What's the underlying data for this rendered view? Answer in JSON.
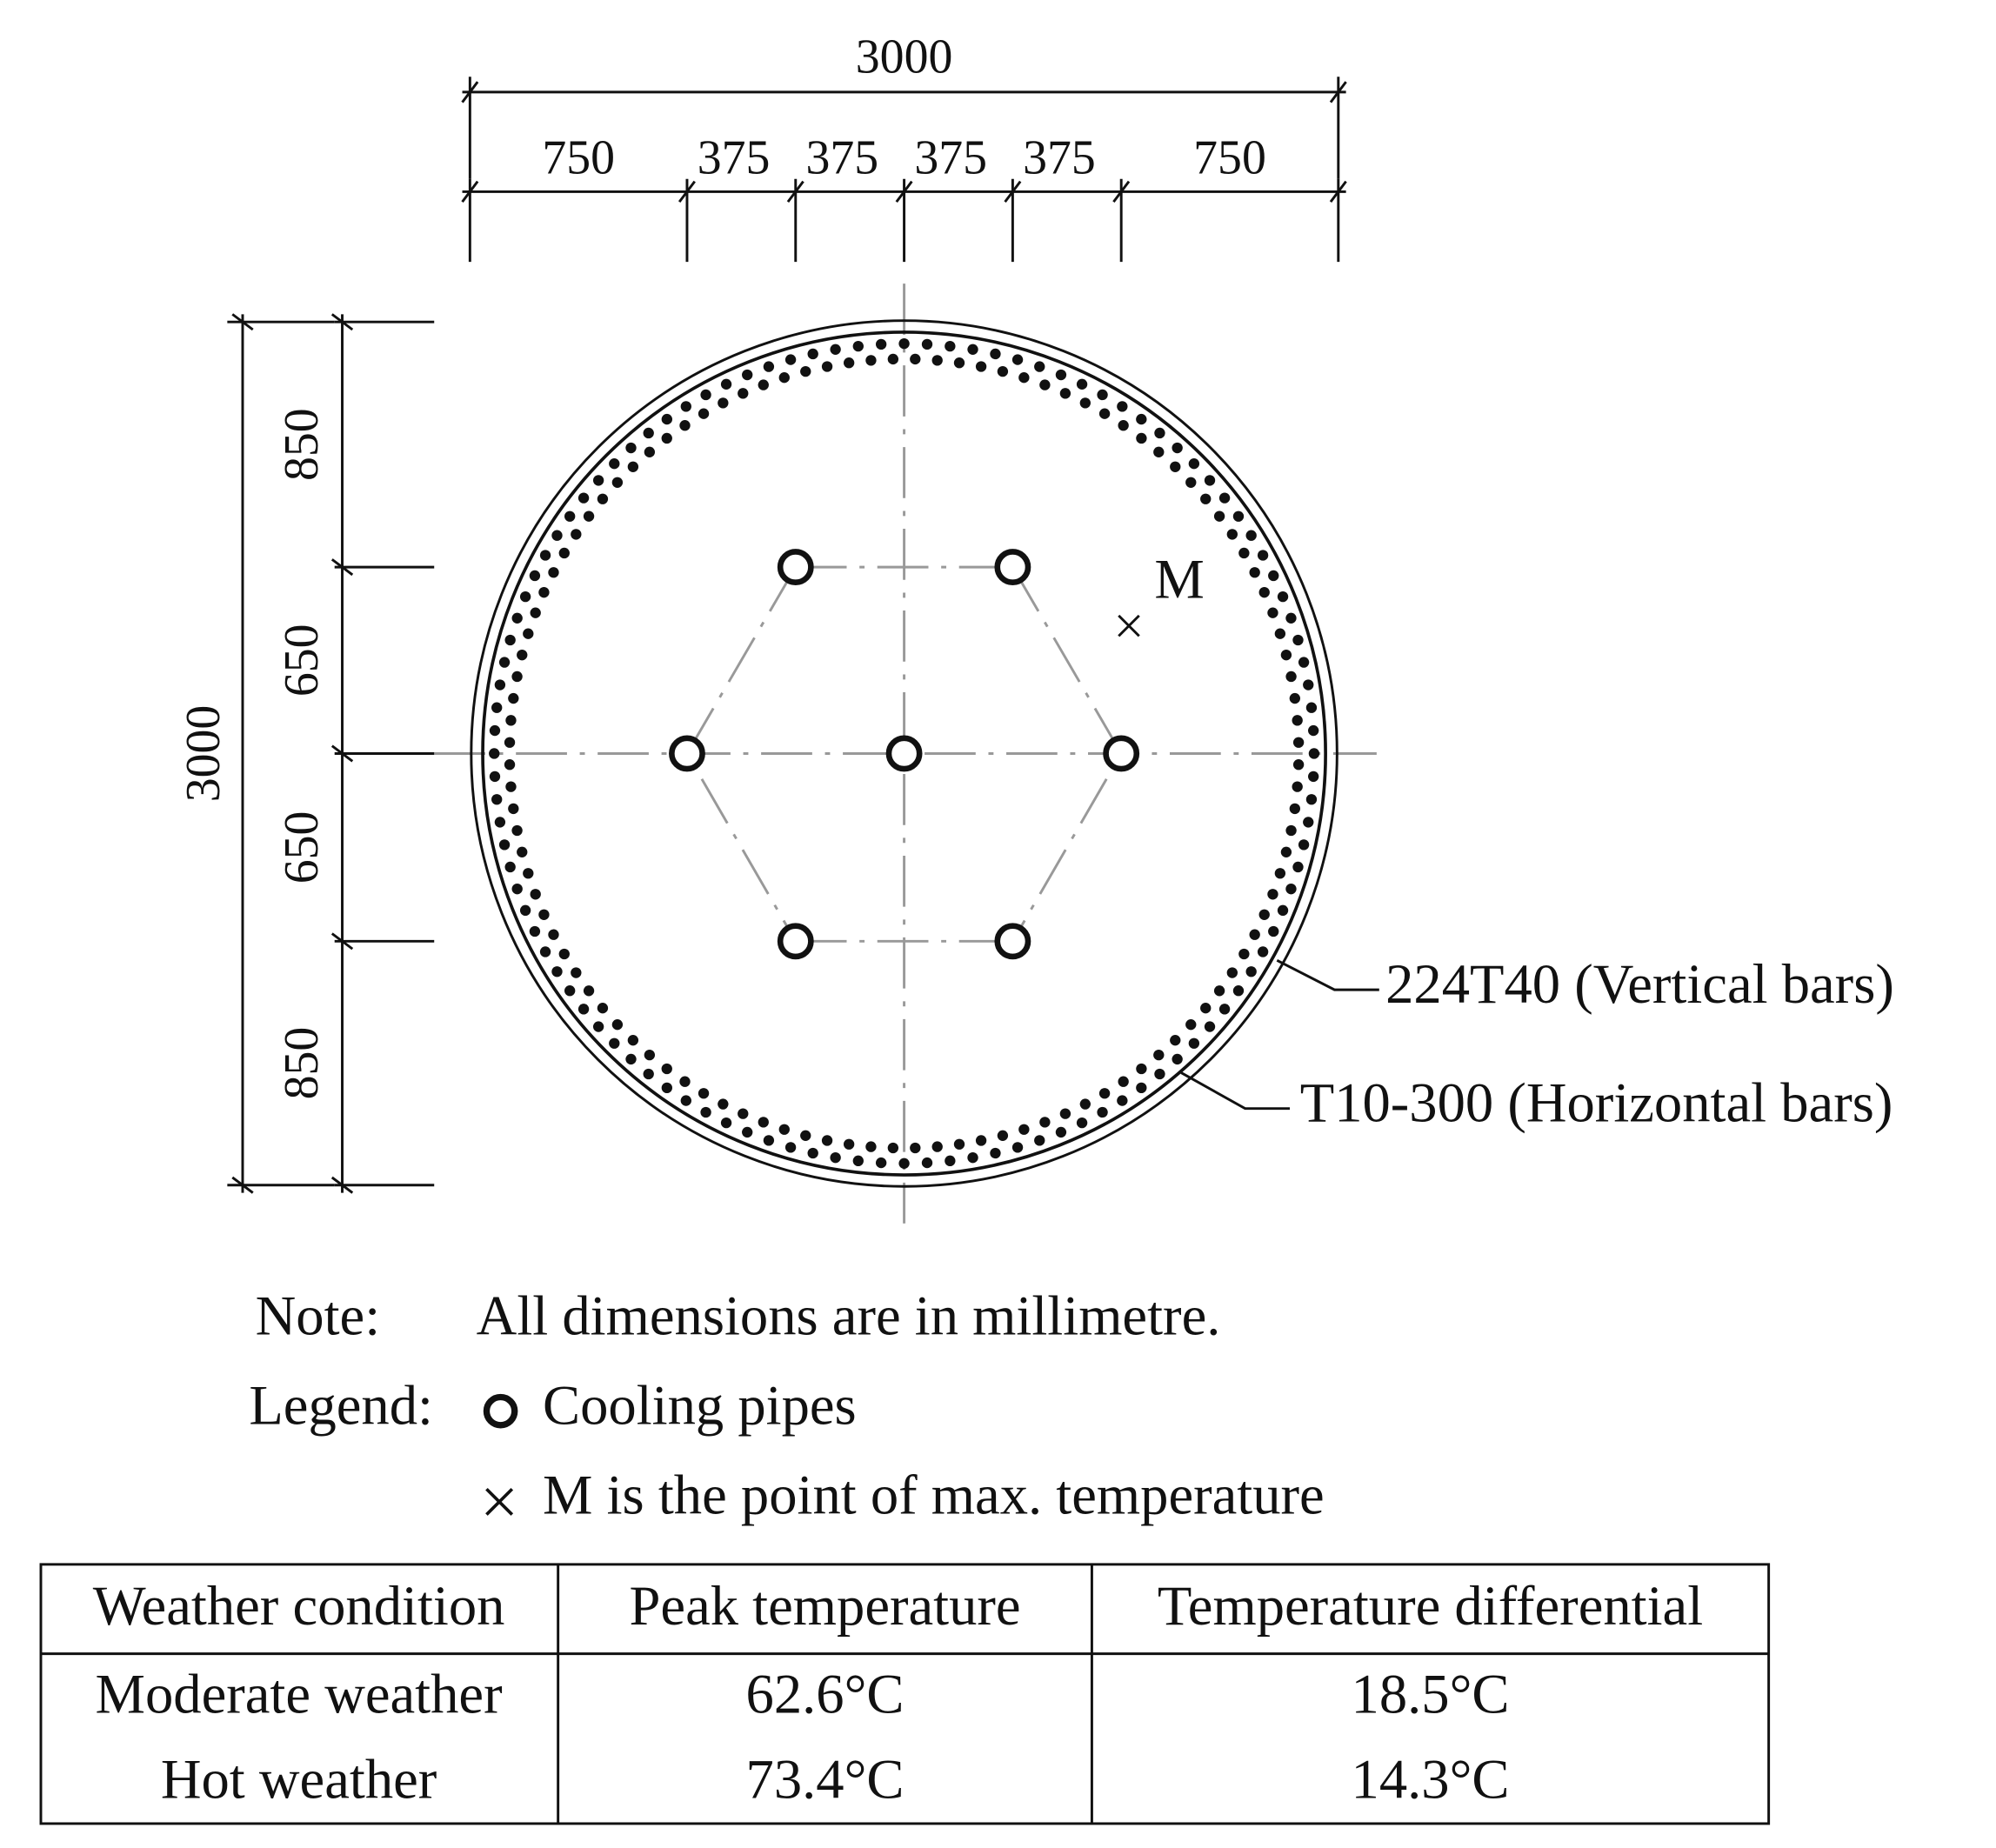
{
  "dimensions": {
    "top_total": "3000",
    "top_parts": [
      "750",
      "375",
      "375",
      "375",
      "375",
      "750"
    ],
    "left_total": "3000",
    "left_parts": [
      "850",
      "650",
      "650",
      "850"
    ]
  },
  "annotations": {
    "point": "M",
    "vertical_bars": "224T40 (Vertical bars)",
    "horizontal_bars": "T10-300 (Horizontal bars)"
  },
  "note": {
    "label": "Note:",
    "text": "All dimensions are in millimetre."
  },
  "legend": {
    "label": "Legend:",
    "items": [
      "Cooling pipes",
      "M is the point of max. temperature"
    ]
  },
  "table": {
    "header": [
      "Weather condition",
      "Peak temperature",
      "Temperature differential"
    ],
    "rows": [
      [
        "Moderate weather",
        "62.6°C",
        "18.5°C"
      ],
      [
        "Hot weather",
        "73.4°C",
        "14.3°C"
      ]
    ]
  }
}
